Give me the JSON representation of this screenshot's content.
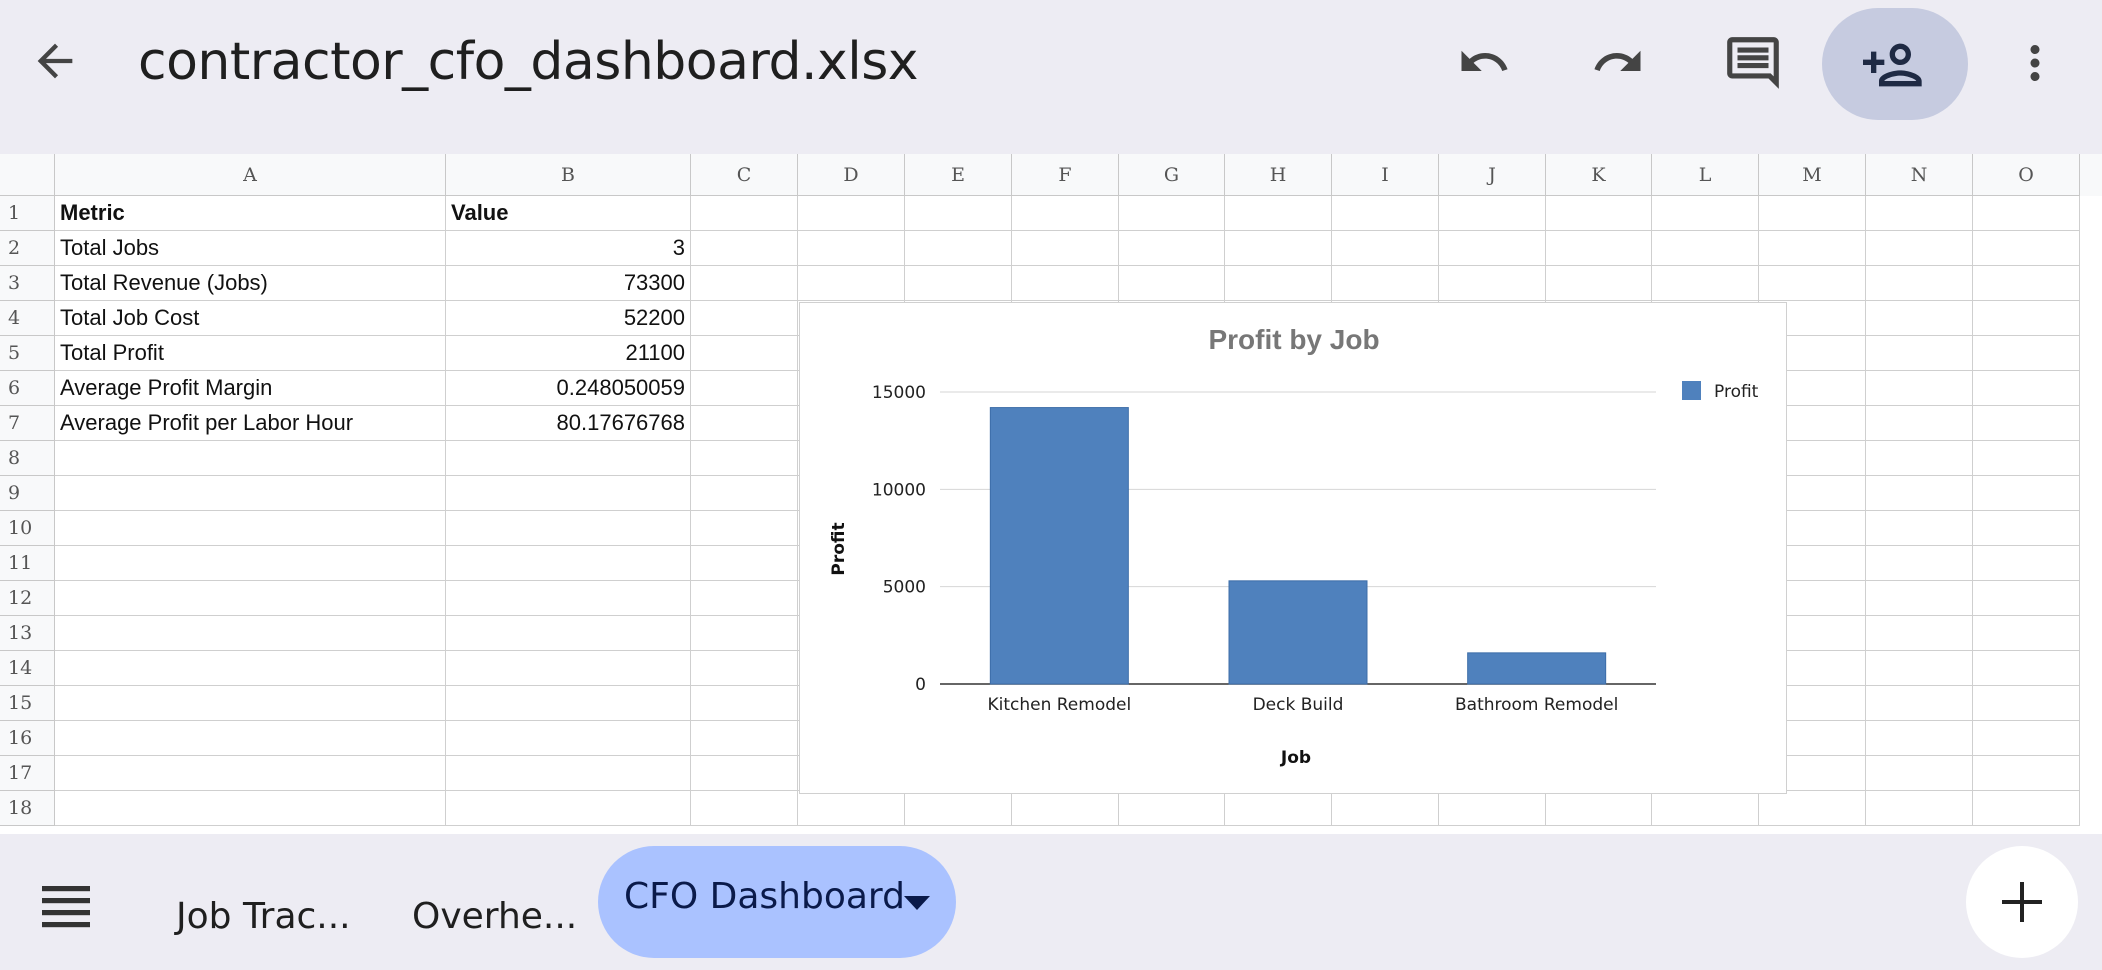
{
  "header": {
    "file_name": "contractor_cfo_dashboard.xlsx",
    "icons": [
      "back-arrow-icon",
      "undo-icon",
      "redo-icon",
      "comment-icon",
      "add-person-icon",
      "more-vert-icon"
    ]
  },
  "grid": {
    "columns": [
      "A",
      "B",
      "C",
      "D",
      "E",
      "F",
      "G",
      "H",
      "I",
      "J",
      "K",
      "L",
      "M",
      "N",
      "O"
    ],
    "row_numbers": [
      "1",
      "2",
      "3",
      "4",
      "5",
      "6",
      "7",
      "8",
      "9",
      "10",
      "11",
      "12",
      "13",
      "14",
      "15",
      "16",
      "17",
      "18"
    ],
    "rows": [
      {
        "a": "Metric",
        "b": "Value"
      },
      {
        "a": "Total Jobs",
        "b": "3"
      },
      {
        "a": "Total Revenue (Jobs)",
        "b": "73300"
      },
      {
        "a": "Total Job Cost",
        "b": "52200"
      },
      {
        "a": "Total Profit",
        "b": "21100"
      },
      {
        "a": "Average Profit Margin",
        "b": "0.248050059"
      },
      {
        "a": "Average Profit per Labor Hour",
        "b": "80.17676768"
      }
    ]
  },
  "chart_data": {
    "type": "bar",
    "title": "Profit by Job",
    "xlabel": "Job",
    "ylabel": "Profit",
    "categories": [
      "Kitchen Remodel",
      "Deck Build",
      "Bathroom Remodel"
    ],
    "series": [
      {
        "name": "Profit",
        "values": [
          14200,
          5300,
          1600
        ]
      }
    ],
    "ylim": [
      0,
      15000
    ],
    "yticks": [
      "0",
      "5000",
      "10000",
      "15000"
    ],
    "legend": "right",
    "grid": true,
    "color": "#4f81bd"
  },
  "sheet_tabs": {
    "menu_icon": "list-menu-icon",
    "tabs": [
      "Job Trac...",
      "Overhe...",
      "CFO Dashboard"
    ],
    "active": "CFO Dashboard",
    "add_icon": "plus-icon"
  }
}
